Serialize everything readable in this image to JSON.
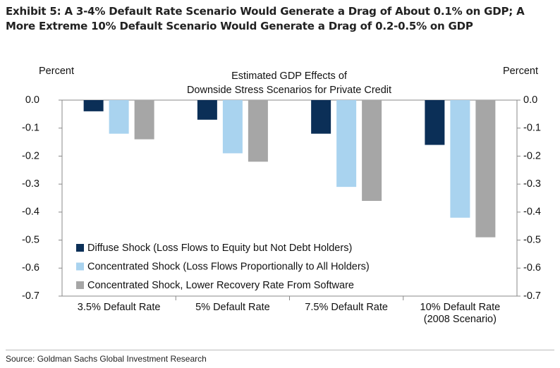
{
  "header": {
    "title": "Exhibit 5: A 3-4% Default Rate Scenario Would Generate a Drag of About 0.1% on GDP; A More Extreme 10% Default Scenario Would Generate a Drag of 0.2-0.5% on GDP"
  },
  "chart_data": {
    "type": "bar",
    "title": [
      "Estimated GDP Effects of",
      "Downside Stress Scenarios for Private Credit"
    ],
    "y_label": "Percent",
    "y2_label": "Percent",
    "categories": [
      "3.5% Default Rate",
      "5% Default Rate",
      "7.5% Default Rate",
      "10% Default Rate (2008 Scenario)"
    ],
    "series": [
      {
        "name": "Diffuse Shock (Loss Flows to Equity but Not Debt Holders)",
        "color": "#0b2f57",
        "values": [
          -0.04,
          -0.07,
          -0.12,
          -0.16
        ]
      },
      {
        "name": "Concentrated Shock (Loss Flows Proportionally to All Holders)",
        "color": "#a9d3ef",
        "values": [
          -0.12,
          -0.19,
          -0.31,
          -0.42
        ]
      },
      {
        "name": "Concentrated Shock, Lower Recovery Rate From Software",
        "color": "#a6a6a6",
        "values": [
          -0.14,
          -0.22,
          -0.36,
          -0.49
        ]
      }
    ],
    "ylim": [
      -0.7,
      0
    ],
    "yticks": [
      {
        "value": 0,
        "label": "0.0"
      },
      -0.1,
      -0.2,
      -0.3,
      -0.4,
      -0.5,
      -0.6,
      -0.7
    ],
    "y2lim": [
      -0.7,
      0
    ],
    "y2ticks": [
      {
        "value": 0,
        "label": "0.0"
      },
      -0.1,
      -0.2,
      -0.3,
      -0.4,
      -0.5,
      -0.6,
      -0.7
    ],
    "legend": "lower-left"
  },
  "footer": {
    "source": "Source: Goldman Sachs Global Investment Research"
  }
}
